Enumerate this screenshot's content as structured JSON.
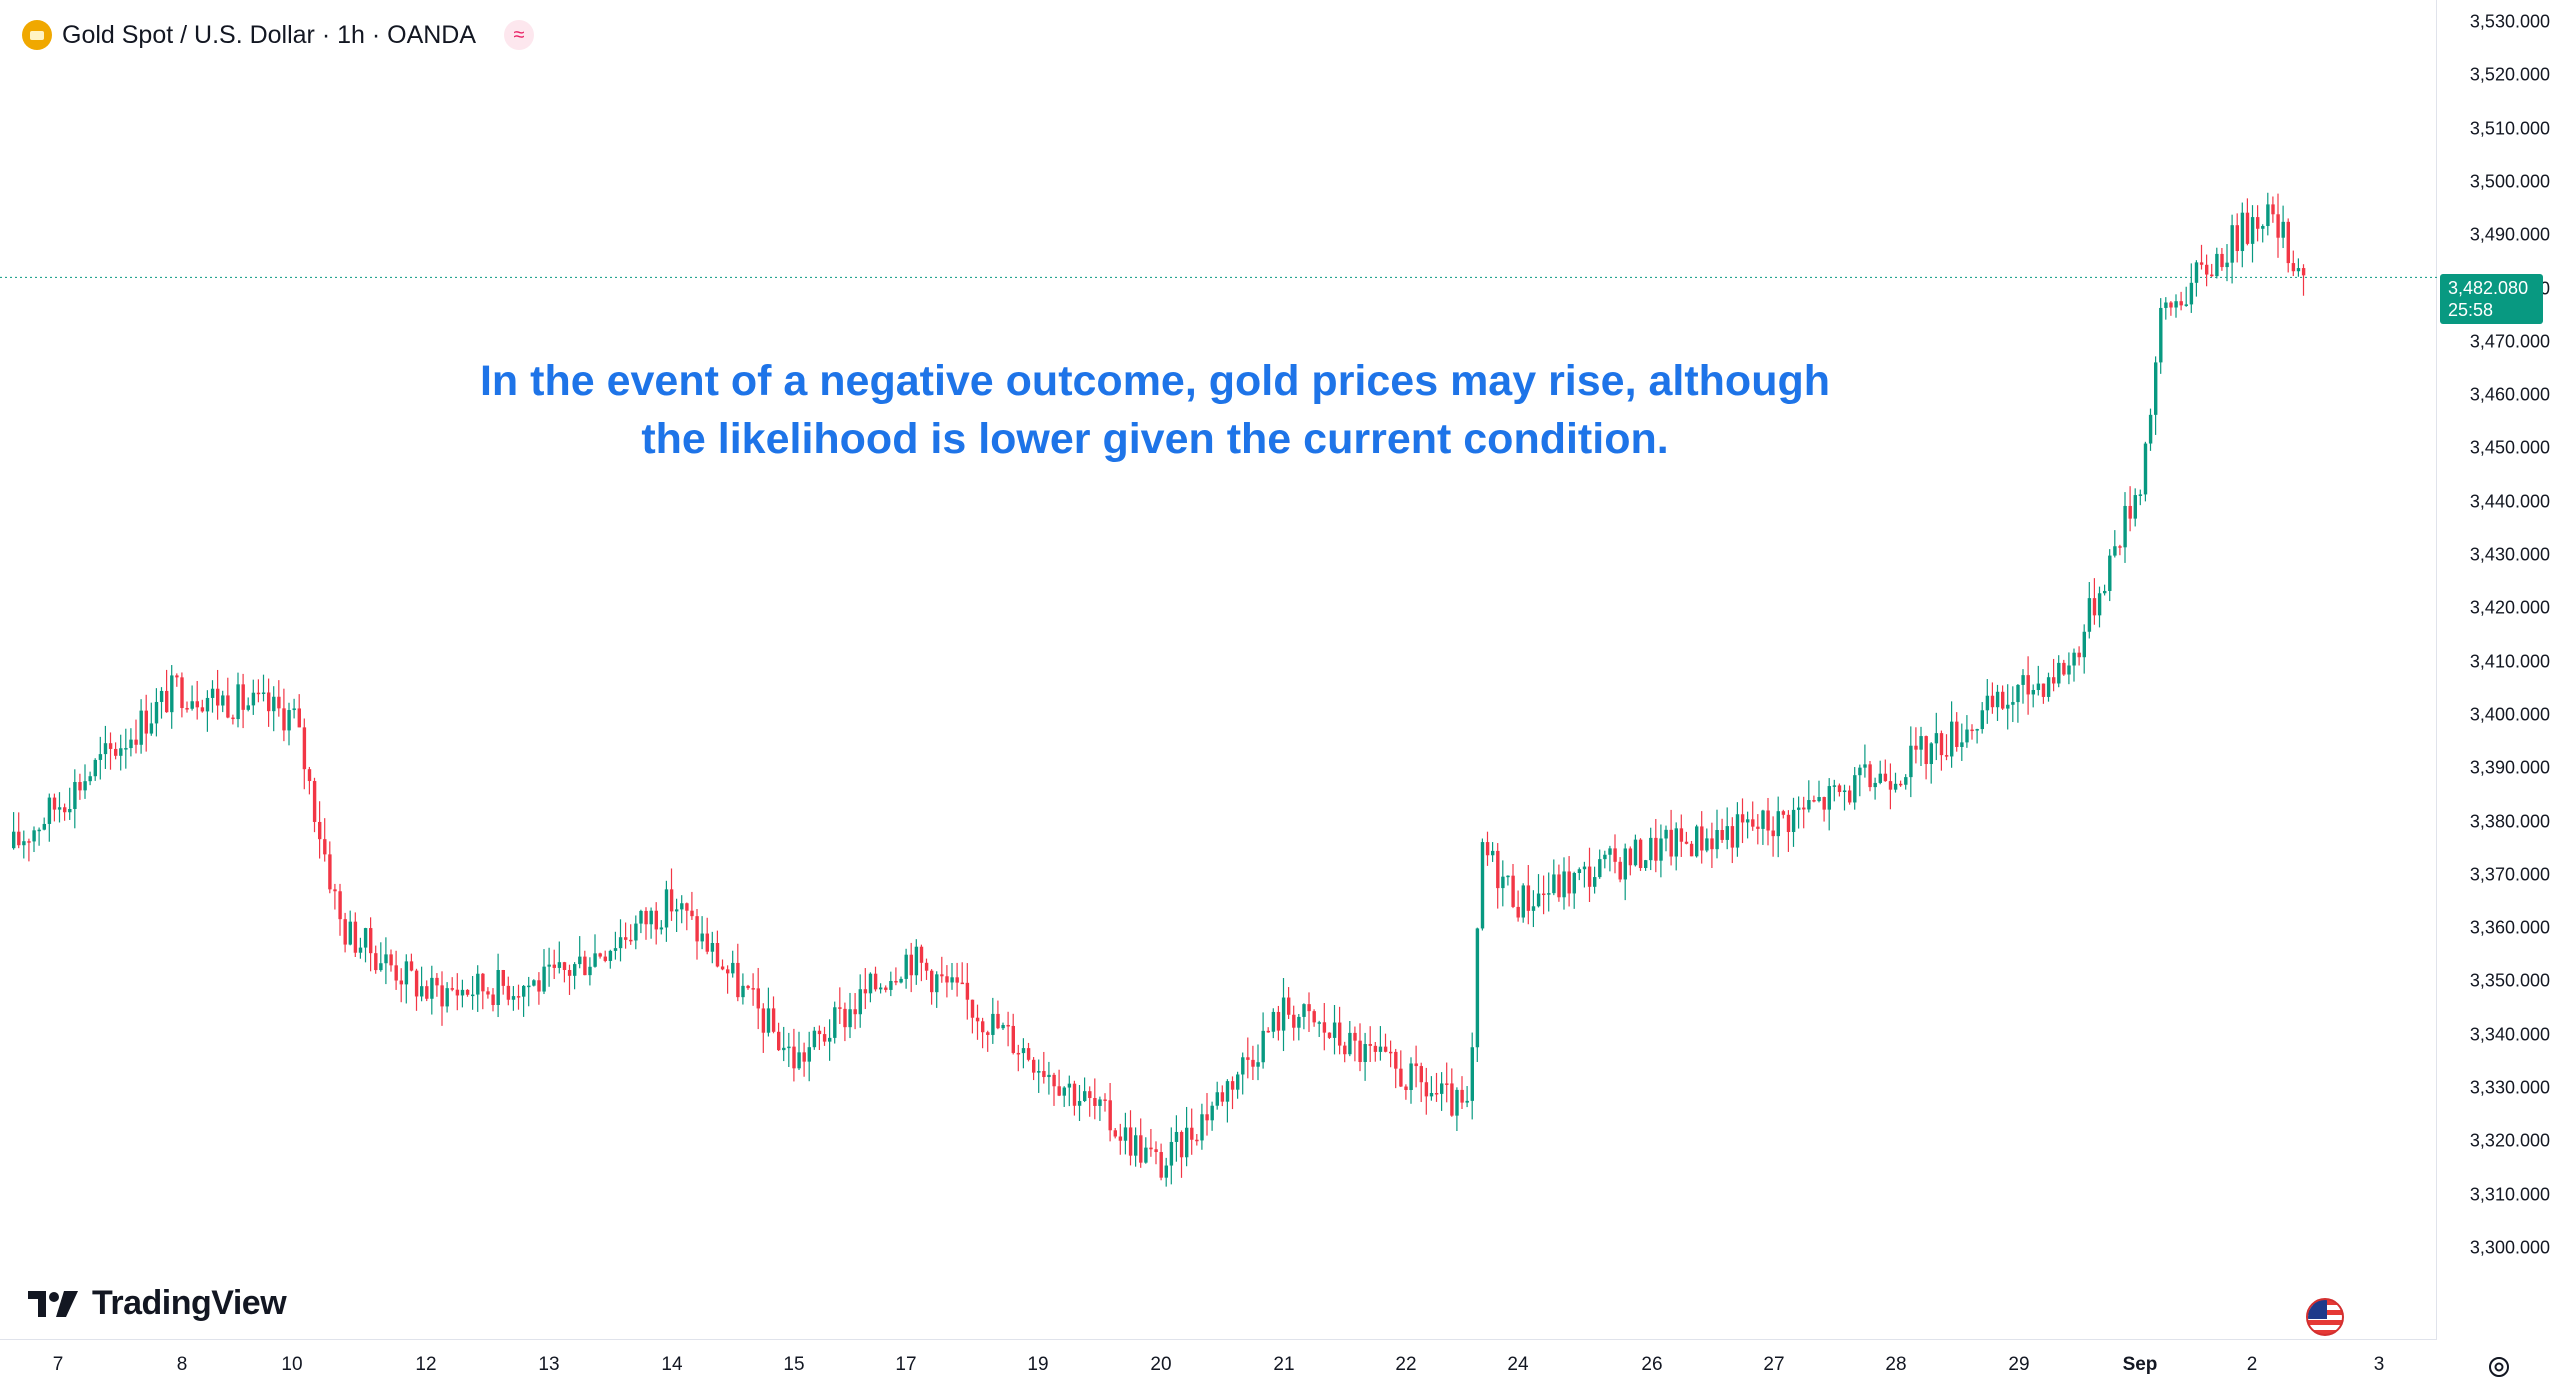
{
  "header": {
    "symbol_title": "Gold Spot / U.S. Dollar · 1h · OANDA",
    "session_icon": "approx-wave-icon",
    "symbol_icon": "gold-bars-icon"
  },
  "annotation": {
    "line1": "In the event of a negative outcome, gold prices may rise, although",
    "line2": "the likelihood is lower given the current condition."
  },
  "branding": {
    "logo_text": "TradingView",
    "logo_icon": "tradingview-logo-icon"
  },
  "price_axis": {
    "labels": [
      "3,530.000",
      "3,520.000",
      "3,510.000",
      "3,500.000",
      "3,490.000",
      "3,480.000",
      "3,470.000",
      "3,460.000",
      "3,450.000",
      "3,440.000",
      "3,430.000",
      "3,420.000",
      "3,410.000",
      "3,400.000",
      "3,390.000",
      "3,380.000",
      "3,370.000",
      "3,360.000",
      "3,350.000",
      "3,340.000",
      "3,330.000",
      "3,320.000",
      "3,310.000",
      "3,300.000"
    ],
    "current_price": "3,482.080",
    "countdown": "25:58"
  },
  "time_axis": {
    "labels": [
      "7",
      "8",
      "10",
      "12",
      "13",
      "14",
      "15",
      "17",
      "19",
      "20",
      "21",
      "22",
      "24",
      "26",
      "27",
      "28",
      "29",
      "Sep",
      "2",
      "3"
    ],
    "bold_label": "Sep"
  },
  "colors": {
    "up": "#089981",
    "down": "#f23645",
    "annotation": "#1e74e8",
    "current_price_bg": "#089981"
  },
  "icons": {
    "corner": "settings-gear-icon",
    "flag": "us-flag-icon"
  },
  "chart_data": {
    "type": "candlestick",
    "interval": "1h",
    "y_range": [
      3300,
      3530
    ],
    "current_price": 3482.08,
    "anchors": [
      {
        "x": "Aug 7",
        "close": 3375
      },
      {
        "x": "Aug 8",
        "close": 3405
      },
      {
        "x": "Aug 10",
        "close": 3400
      },
      {
        "x": "Aug 11",
        "close": 3360
      },
      {
        "x": "Aug 12",
        "close": 3348
      },
      {
        "x": "Aug 13",
        "close": 3350
      },
      {
        "x": "Aug 14",
        "close": 3365
      },
      {
        "x": "Aug 15",
        "close": 3335
      },
      {
        "x": "Aug 17",
        "close": 3355
      },
      {
        "x": "Aug 19",
        "close": 3335
      },
      {
        "x": "Aug 20",
        "close": 3315
      },
      {
        "x": "Aug 21",
        "close": 3345
      },
      {
        "x": "Aug 22",
        "close": 3325
      },
      {
        "x": "Aug 22",
        "close": 3375
      },
      {
        "x": "Aug 24",
        "close": 3365
      },
      {
        "x": "Aug 26",
        "close": 3375
      },
      {
        "x": "Aug 27",
        "close": 3380
      },
      {
        "x": "Aug 28",
        "close": 3390
      },
      {
        "x": "Aug 29",
        "close": 3410
      },
      {
        "x": "Sep 1",
        "close": 3445
      },
      {
        "x": "Sep 1",
        "close": 3475
      },
      {
        "x": "Sep 2",
        "close": 3495
      },
      {
        "x": "Sep 2",
        "close": 3482.08
      }
    ]
  }
}
